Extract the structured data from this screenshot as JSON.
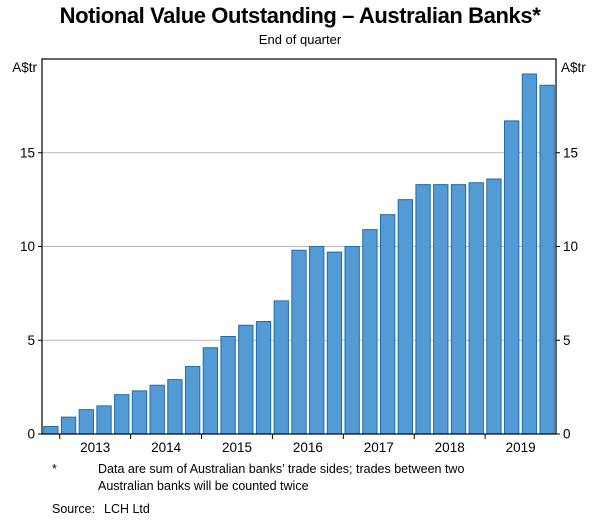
{
  "chart": {
    "title": "Notional Value Outstanding – Australian Banks*",
    "subtitle": "End of quarter",
    "unit_left": "A$tr",
    "unit_right": "A$tr"
  },
  "chart_data": {
    "type": "bar",
    "title": "Notional Value Outstanding – Australian Banks*",
    "subtitle": "End of quarter",
    "ylabel": "A$tr",
    "ylim": [
      0,
      20
    ],
    "yticks": [
      0,
      5,
      10,
      15
    ],
    "grid": true,
    "legend": "none",
    "bar_color": "#549bd5",
    "bar_edge_color": "#1e6bb0",
    "grid_color": "#b9b9b9",
    "frame_color": "#000000",
    "x_year_labels": [
      "2013",
      "2014",
      "2015",
      "2016",
      "2017",
      "2018",
      "2019"
    ],
    "quarters": [
      "2012Q4",
      "2013Q1",
      "2013Q2",
      "2013Q3",
      "2013Q4",
      "2014Q1",
      "2014Q2",
      "2014Q3",
      "2014Q4",
      "2015Q1",
      "2015Q2",
      "2015Q3",
      "2015Q4",
      "2016Q1",
      "2016Q2",
      "2016Q3",
      "2016Q4",
      "2017Q1",
      "2017Q2",
      "2017Q3",
      "2017Q4",
      "2018Q1",
      "2018Q2",
      "2018Q3",
      "2018Q4",
      "2019Q1",
      "2019Q2",
      "2019Q3",
      "2019Q4"
    ],
    "values": [
      0.4,
      0.9,
      1.3,
      1.5,
      2.1,
      2.3,
      2.6,
      2.9,
      3.6,
      4.6,
      5.2,
      5.8,
      6.0,
      7.1,
      9.8,
      10.0,
      9.7,
      10.0,
      10.9,
      11.7,
      12.5,
      13.3,
      13.3,
      13.3,
      13.4,
      13.6,
      16.7,
      19.2,
      18.6
    ]
  },
  "footnote": {
    "marker": "*",
    "text": "Data are sum of Australian banks’ trade sides; trades between two Australian banks will be counted twice"
  },
  "source": {
    "label": "Source:",
    "text": "LCH Ltd"
  }
}
